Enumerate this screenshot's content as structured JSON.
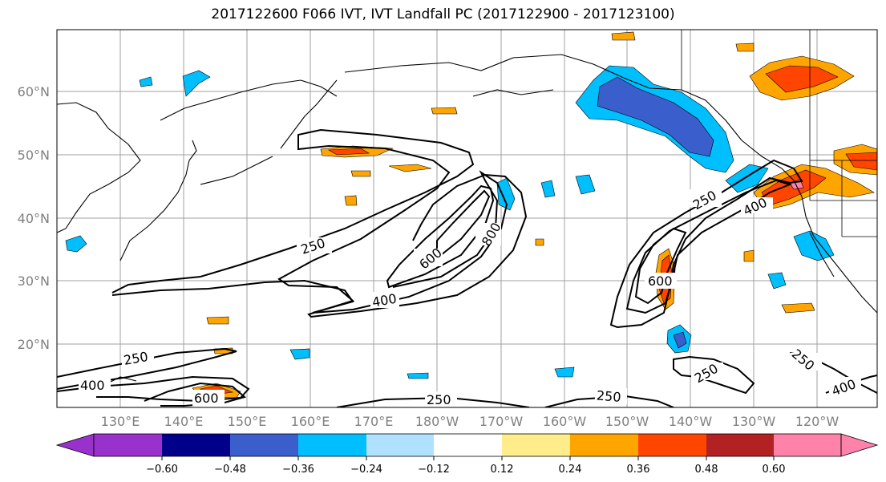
{
  "title": "2017122600 F066 IVT, IVT Landfall PC (2017122900 - 2017123100)",
  "lat_labels": [
    "60°N",
    "50°N",
    "40°N",
    "30°N",
    "20°N"
  ],
  "lon_labels": [
    "130°E",
    "140°E",
    "150°E",
    "160°E",
    "170°E",
    "180°W",
    "170°W",
    "160°W",
    "150°W",
    "140°W",
    "130°W",
    "120°W"
  ],
  "contour_labels": [
    "250",
    "600",
    "800",
    "400",
    "250",
    "400",
    "600",
    "250",
    "400",
    "600",
    "250",
    "250",
    "250",
    "250",
    "400"
  ],
  "colorbar": {
    "colors": [
      "#9932cc",
      "#00008b",
      "#3a5fcd",
      "#00bfff",
      "#b0e2ff",
      "#ffffff",
      "#ffec8b",
      "#ffa500",
      "#ff4500",
      "#b22222",
      "#ff82ab"
    ],
    "ticks": [
      "−0.60",
      "−0.48",
      "−0.36",
      "−0.24",
      "−0.12",
      "0.12",
      "0.24",
      "0.36",
      "0.48",
      "0.60"
    ]
  }
}
